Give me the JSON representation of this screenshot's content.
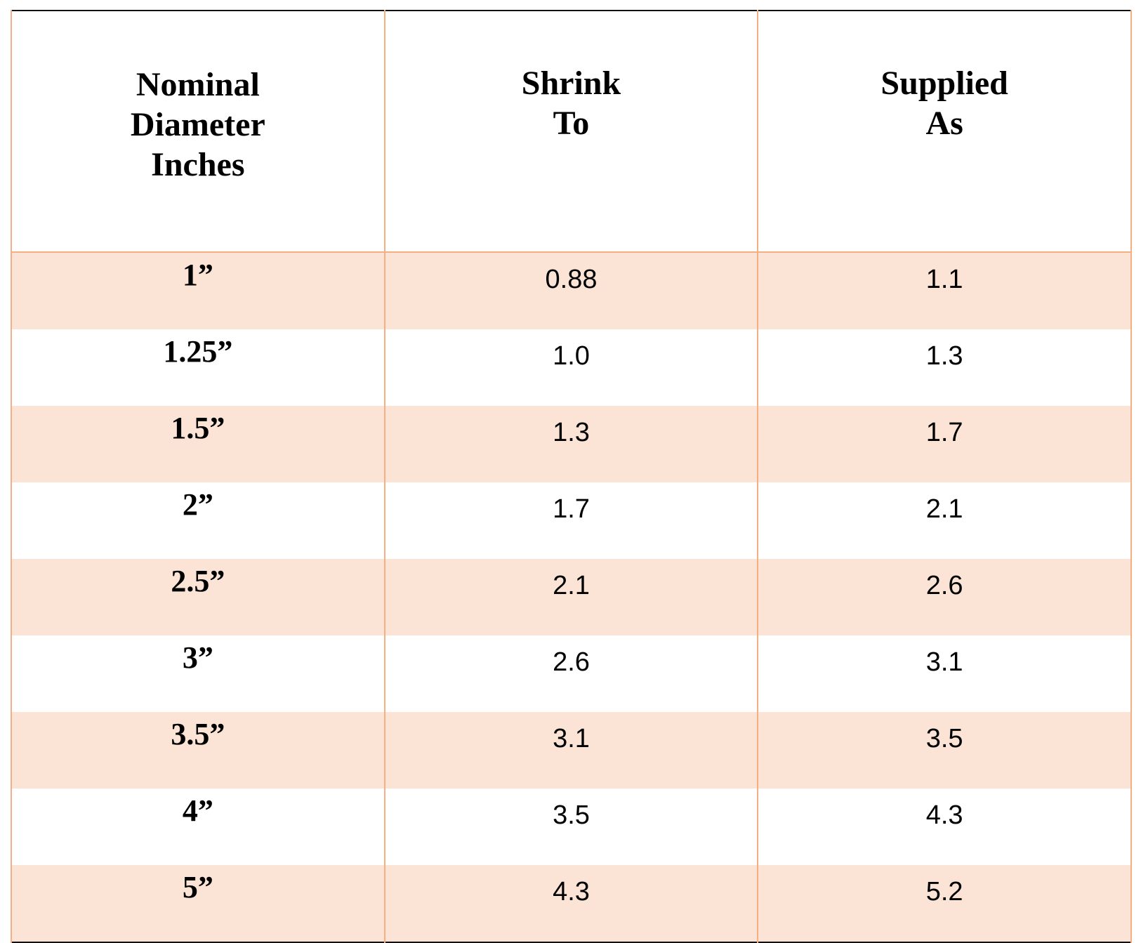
{
  "headers": [
    [
      "Nominal",
      "Diameter",
      "Inches"
    ],
    [
      "Shrink",
      "To"
    ],
    [
      "Supplied",
      "As"
    ]
  ],
  "rows": [
    {
      "nominal": "1”",
      "shrink_to": "0.88",
      "supplied_as": "1.1"
    },
    {
      "nominal": "1.25”",
      "shrink_to": "1.0",
      "supplied_as": "1.3"
    },
    {
      "nominal": "1.5”",
      "shrink_to": "1.3",
      "supplied_as": "1.7"
    },
    {
      "nominal": "2”",
      "shrink_to": "1.7",
      "supplied_as": "2.1"
    },
    {
      "nominal": "2.5”",
      "shrink_to": "2.1",
      "supplied_as": "2.6"
    },
    {
      "nominal": "3”",
      "shrink_to": "2.6",
      "supplied_as": "3.1"
    },
    {
      "nominal": "3.5”",
      "shrink_to": "3.1",
      "supplied_as": "3.5"
    },
    {
      "nominal": "4”",
      "shrink_to": "3.5",
      "supplied_as": "4.3"
    },
    {
      "nominal": "5”",
      "shrink_to": "4.3",
      "supplied_as": "5.2"
    }
  ],
  "colors": {
    "row_shade": "#FBE4D5",
    "grid_line": "#F4B083",
    "border": "#111111"
  }
}
